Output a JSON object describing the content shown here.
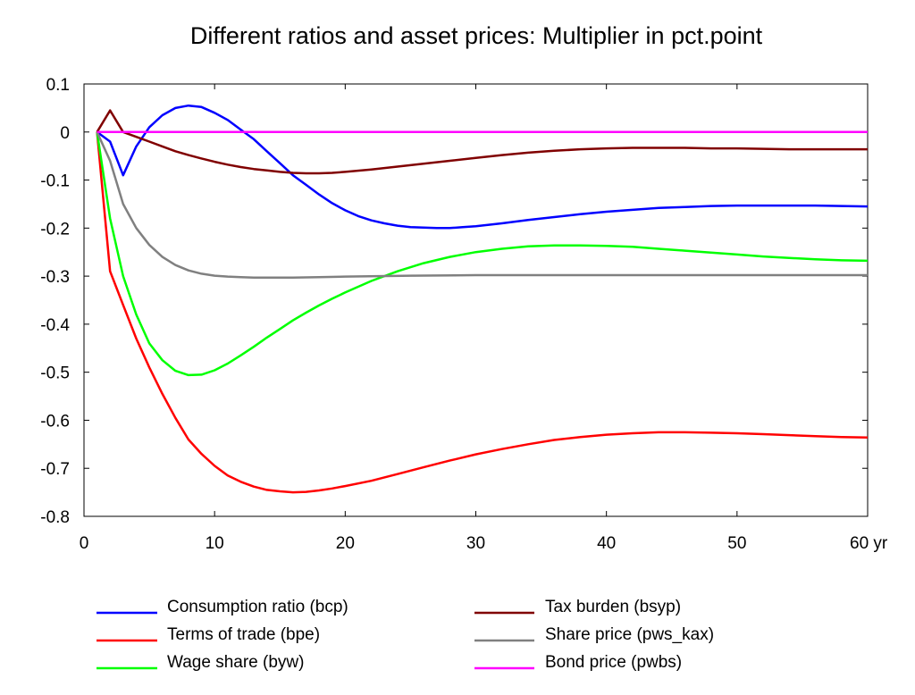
{
  "chart_data": {
    "type": "line",
    "title": "Different ratios and asset prices: Multiplier in pct.point",
    "xlabel": "",
    "ylabel": "",
    "xlim": [
      0,
      60
    ],
    "ylim": [
      -0.8,
      0.1
    ],
    "x_ticks": [
      0,
      10,
      20,
      30,
      40,
      50,
      60
    ],
    "x_tick_labels": [
      "0",
      "10",
      "20",
      "30",
      "40",
      "50",
      "60 yr"
    ],
    "y_ticks": [
      0.1,
      0,
      -0.1,
      -0.2,
      -0.3,
      -0.4,
      -0.5,
      -0.6,
      -0.7,
      -0.8
    ],
    "y_tick_labels": [
      "0.1",
      "0",
      "-0.1",
      "-0.2",
      "-0.3",
      "-0.4",
      "-0.5",
      "-0.6",
      "-0.7",
      "-0.8"
    ],
    "grid": false,
    "legend_position": "bottom",
    "series": [
      {
        "name": "Consumption ratio (bcp)",
        "color": "#0000ff",
        "points": [
          [
            1,
            0
          ],
          [
            2,
            -0.02
          ],
          [
            3,
            -0.09
          ],
          [
            4,
            -0.03
          ],
          [
            5,
            0.01
          ],
          [
            6,
            0.035
          ],
          [
            7,
            0.05
          ],
          [
            8,
            0.055
          ],
          [
            9,
            0.052
          ],
          [
            10,
            0.04
          ],
          [
            11,
            0.025
          ],
          [
            12,
            0.005
          ],
          [
            13,
            -0.015
          ],
          [
            14,
            -0.04
          ],
          [
            15,
            -0.065
          ],
          [
            16,
            -0.09
          ],
          [
            17,
            -0.11
          ],
          [
            18,
            -0.13
          ],
          [
            19,
            -0.148
          ],
          [
            20,
            -0.163
          ],
          [
            21,
            -0.175
          ],
          [
            22,
            -0.184
          ],
          [
            23,
            -0.19
          ],
          [
            24,
            -0.195
          ],
          [
            25,
            -0.198
          ],
          [
            26,
            -0.199
          ],
          [
            27,
            -0.2
          ],
          [
            28,
            -0.2
          ],
          [
            29,
            -0.198
          ],
          [
            30,
            -0.196
          ],
          [
            32,
            -0.19
          ],
          [
            34,
            -0.183
          ],
          [
            36,
            -0.177
          ],
          [
            38,
            -0.171
          ],
          [
            40,
            -0.166
          ],
          [
            42,
            -0.162
          ],
          [
            44,
            -0.158
          ],
          [
            46,
            -0.156
          ],
          [
            48,
            -0.154
          ],
          [
            50,
            -0.153
          ],
          [
            52,
            -0.153
          ],
          [
            54,
            -0.153
          ],
          [
            56,
            -0.153
          ],
          [
            58,
            -0.154
          ],
          [
            60,
            -0.155
          ]
        ]
      },
      {
        "name": "Terms of trade (bpe)",
        "color": "#ff0000",
        "points": [
          [
            1,
            0
          ],
          [
            2,
            -0.29
          ],
          [
            3,
            -0.36
          ],
          [
            4,
            -0.43
          ],
          [
            5,
            -0.49
          ],
          [
            6,
            -0.545
          ],
          [
            7,
            -0.595
          ],
          [
            8,
            -0.64
          ],
          [
            9,
            -0.67
          ],
          [
            10,
            -0.695
          ],
          [
            11,
            -0.715
          ],
          [
            12,
            -0.728
          ],
          [
            13,
            -0.738
          ],
          [
            14,
            -0.745
          ],
          [
            15,
            -0.748
          ],
          [
            16,
            -0.75
          ],
          [
            17,
            -0.749
          ],
          [
            18,
            -0.746
          ],
          [
            19,
            -0.742
          ],
          [
            20,
            -0.737
          ],
          [
            22,
            -0.726
          ],
          [
            24,
            -0.712
          ],
          [
            26,
            -0.698
          ],
          [
            28,
            -0.684
          ],
          [
            30,
            -0.671
          ],
          [
            32,
            -0.66
          ],
          [
            34,
            -0.65
          ],
          [
            36,
            -0.641
          ],
          [
            38,
            -0.635
          ],
          [
            40,
            -0.63
          ],
          [
            42,
            -0.627
          ],
          [
            44,
            -0.625
          ],
          [
            46,
            -0.625
          ],
          [
            48,
            -0.626
          ],
          [
            50,
            -0.627
          ],
          [
            52,
            -0.629
          ],
          [
            54,
            -0.631
          ],
          [
            56,
            -0.633
          ],
          [
            58,
            -0.635
          ],
          [
            60,
            -0.636
          ]
        ]
      },
      {
        "name": "Wage share (byw)",
        "color": "#00ff00",
        "points": [
          [
            1,
            0
          ],
          [
            2,
            -0.18
          ],
          [
            3,
            -0.3
          ],
          [
            4,
            -0.38
          ],
          [
            5,
            -0.44
          ],
          [
            6,
            -0.475
          ],
          [
            7,
            -0.497
          ],
          [
            8,
            -0.506
          ],
          [
            9,
            -0.505
          ],
          [
            10,
            -0.496
          ],
          [
            11,
            -0.482
          ],
          [
            12,
            -0.465
          ],
          [
            13,
            -0.447
          ],
          [
            14,
            -0.428
          ],
          [
            15,
            -0.41
          ],
          [
            16,
            -0.392
          ],
          [
            17,
            -0.376
          ],
          [
            18,
            -0.361
          ],
          [
            19,
            -0.347
          ],
          [
            20,
            -0.334
          ],
          [
            22,
            -0.31
          ],
          [
            24,
            -0.29
          ],
          [
            26,
            -0.273
          ],
          [
            28,
            -0.26
          ],
          [
            30,
            -0.25
          ],
          [
            32,
            -0.243
          ],
          [
            34,
            -0.238
          ],
          [
            36,
            -0.236
          ],
          [
            38,
            -0.236
          ],
          [
            40,
            -0.237
          ],
          [
            42,
            -0.239
          ],
          [
            44,
            -0.243
          ],
          [
            46,
            -0.247
          ],
          [
            48,
            -0.251
          ],
          [
            50,
            -0.255
          ],
          [
            52,
            -0.259
          ],
          [
            54,
            -0.262
          ],
          [
            56,
            -0.265
          ],
          [
            58,
            -0.267
          ],
          [
            60,
            -0.268
          ]
        ]
      },
      {
        "name": "Tax burden (bsyp)",
        "color": "#800000",
        "points": [
          [
            1,
            0
          ],
          [
            2,
            0.045
          ],
          [
            3,
            0
          ],
          [
            4,
            -0.01
          ],
          [
            5,
            -0.02
          ],
          [
            6,
            -0.03
          ],
          [
            7,
            -0.04
          ],
          [
            8,
            -0.048
          ],
          [
            9,
            -0.055
          ],
          [
            10,
            -0.062
          ],
          [
            11,
            -0.068
          ],
          [
            12,
            -0.073
          ],
          [
            13,
            -0.077
          ],
          [
            14,
            -0.08
          ],
          [
            15,
            -0.083
          ],
          [
            16,
            -0.085
          ],
          [
            17,
            -0.086
          ],
          [
            18,
            -0.086
          ],
          [
            19,
            -0.085
          ],
          [
            20,
            -0.083
          ],
          [
            22,
            -0.078
          ],
          [
            24,
            -0.072
          ],
          [
            26,
            -0.066
          ],
          [
            28,
            -0.06
          ],
          [
            30,
            -0.054
          ],
          [
            32,
            -0.048
          ],
          [
            34,
            -0.043
          ],
          [
            36,
            -0.039
          ],
          [
            38,
            -0.036
          ],
          [
            40,
            -0.034
          ],
          [
            42,
            -0.033
          ],
          [
            44,
            -0.033
          ],
          [
            46,
            -0.033
          ],
          [
            48,
            -0.034
          ],
          [
            50,
            -0.034
          ],
          [
            52,
            -0.035
          ],
          [
            54,
            -0.036
          ],
          [
            56,
            -0.036
          ],
          [
            58,
            -0.036
          ],
          [
            60,
            -0.036
          ]
        ]
      },
      {
        "name": "Share price (pws_kax)",
        "color": "#808080",
        "points": [
          [
            1,
            0
          ],
          [
            2,
            -0.06
          ],
          [
            3,
            -0.15
          ],
          [
            4,
            -0.2
          ],
          [
            5,
            -0.235
          ],
          [
            6,
            -0.26
          ],
          [
            7,
            -0.277
          ],
          [
            8,
            -0.288
          ],
          [
            9,
            -0.295
          ],
          [
            10,
            -0.299
          ],
          [
            11,
            -0.301
          ],
          [
            12,
            -0.302
          ],
          [
            13,
            -0.303
          ],
          [
            14,
            -0.303
          ],
          [
            15,
            -0.303
          ],
          [
            16,
            -0.303
          ],
          [
            18,
            -0.302
          ],
          [
            20,
            -0.301
          ],
          [
            25,
            -0.299
          ],
          [
            30,
            -0.298
          ],
          [
            40,
            -0.298
          ],
          [
            50,
            -0.298
          ],
          [
            60,
            -0.298
          ]
        ]
      },
      {
        "name": "Bond price (pwbs)",
        "color": "#ff00ff",
        "points": [
          [
            1,
            0
          ],
          [
            60,
            0
          ]
        ]
      }
    ]
  }
}
